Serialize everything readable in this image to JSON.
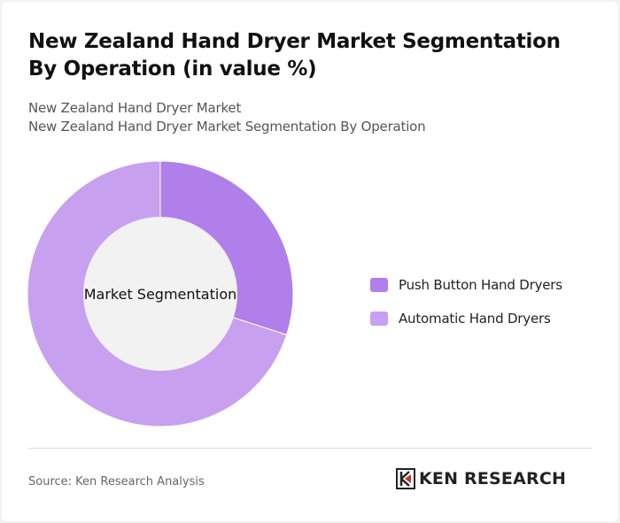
{
  "title": "New Zealand Hand Dryer Market Segmentation By Operation (in value %)",
  "subtitle_1": "New Zealand Hand Dryer Market",
  "subtitle_2": "New Zealand Hand Dryer Market Segmentation By Operation",
  "source": "Source: Ken Research Analysis",
  "brand": "KEN RESEARCH",
  "colors": {
    "push_button": "#b07fea",
    "automatic": "#c8a0f0",
    "center": "#f2f2f2"
  },
  "chart_data": {
    "type": "pie",
    "center_label": "Market Segmentation",
    "categories": [
      "Push Button Hand Dryers",
      "Automatic Hand Dryers"
    ],
    "values": [
      30,
      70
    ],
    "legend_position": "right"
  }
}
